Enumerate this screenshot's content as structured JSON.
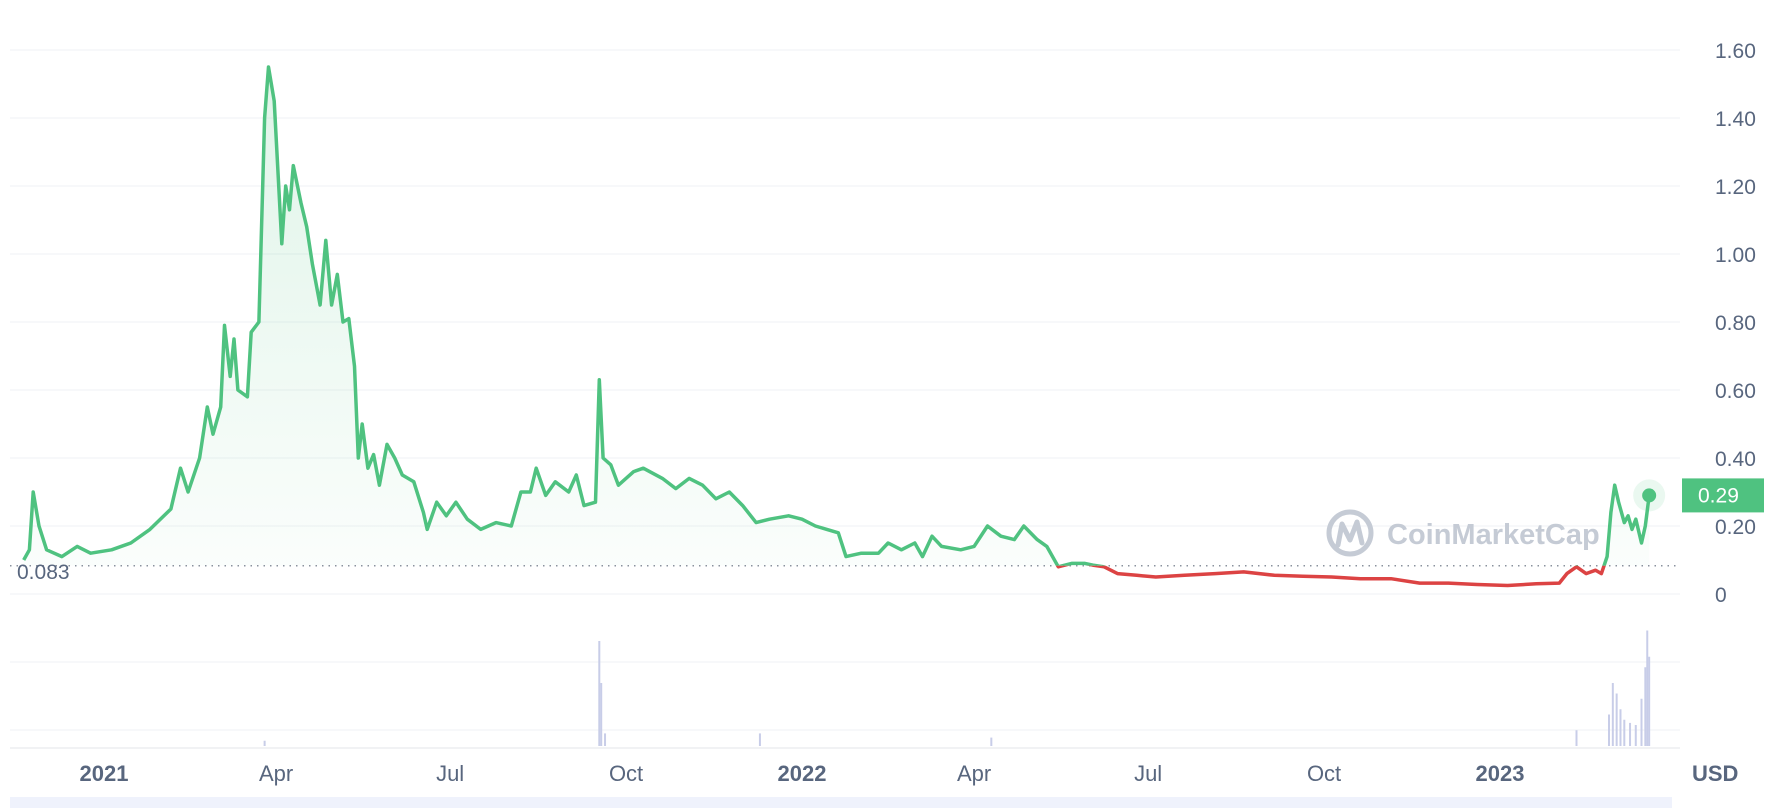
{
  "chart_data": {
    "type": "area",
    "y_ticks": [
      {
        "value": 0,
        "label": "0"
      },
      {
        "value": 0.2,
        "label": "0.20"
      },
      {
        "value": 0.4,
        "label": "0.40"
      },
      {
        "value": 0.6,
        "label": "0.60"
      },
      {
        "value": 0.8,
        "label": "0.80"
      },
      {
        "value": 1.0,
        "label": "1.00"
      },
      {
        "value": 1.2,
        "label": "1.20"
      },
      {
        "value": 1.4,
        "label": "1.40"
      },
      {
        "value": 1.6,
        "label": "1.60"
      }
    ],
    "ylim": [
      0,
      1.7
    ],
    "x_range": [
      "2020-11-20",
      "2023-03-20"
    ],
    "x_ticks": [
      {
        "date": "2021-01-01",
        "label": "2021",
        "bold": true
      },
      {
        "date": "2021-04-01",
        "label": "Apr",
        "bold": false
      },
      {
        "date": "2021-07-01",
        "label": "Jul",
        "bold": false
      },
      {
        "date": "2021-10-01",
        "label": "Oct",
        "bold": false
      },
      {
        "date": "2022-01-01",
        "label": "2022",
        "bold": true
      },
      {
        "date": "2022-04-01",
        "label": "Apr",
        "bold": false
      },
      {
        "date": "2022-07-01",
        "label": "Jul",
        "bold": false
      },
      {
        "date": "2022-10-01",
        "label": "Oct",
        "bold": false
      },
      {
        "date": "2023-01-01",
        "label": "2023",
        "bold": true
      }
    ],
    "currency": "USD",
    "reference_price": 0.083,
    "reference_label": "0.083",
    "current_price": 0.29,
    "current_label": "0.29",
    "colors": {
      "above": "#4fc280",
      "below": "#dc4343",
      "grid": "#eff2f5",
      "tag": "#4fc280"
    },
    "price": [
      [
        "2020-11-20",
        0.1
      ],
      [
        "2020-11-23",
        0.13
      ],
      [
        "2020-11-25",
        0.3
      ],
      [
        "2020-11-28",
        0.2
      ],
      [
        "2020-12-02",
        0.13
      ],
      [
        "2020-12-10",
        0.11
      ],
      [
        "2020-12-18",
        0.14
      ],
      [
        "2020-12-25",
        0.12
      ],
      [
        "2021-01-05",
        0.13
      ],
      [
        "2021-01-15",
        0.15
      ],
      [
        "2021-01-25",
        0.19
      ],
      [
        "2021-02-05",
        0.25
      ],
      [
        "2021-02-10",
        0.37
      ],
      [
        "2021-02-14",
        0.3
      ],
      [
        "2021-02-20",
        0.4
      ],
      [
        "2021-02-24",
        0.55
      ],
      [
        "2021-02-27",
        0.47
      ],
      [
        "2021-03-03",
        0.55
      ],
      [
        "2021-03-05",
        0.79
      ],
      [
        "2021-03-08",
        0.64
      ],
      [
        "2021-03-10",
        0.75
      ],
      [
        "2021-03-12",
        0.6
      ],
      [
        "2021-03-17",
        0.58
      ],
      [
        "2021-03-19",
        0.77
      ],
      [
        "2021-03-23",
        0.8
      ],
      [
        "2021-03-26",
        1.4
      ],
      [
        "2021-03-28",
        1.55
      ],
      [
        "2021-03-31",
        1.45
      ],
      [
        "2021-04-04",
        1.03
      ],
      [
        "2021-04-06",
        1.2
      ],
      [
        "2021-04-08",
        1.13
      ],
      [
        "2021-04-10",
        1.26
      ],
      [
        "2021-04-14",
        1.15
      ],
      [
        "2021-04-17",
        1.08
      ],
      [
        "2021-04-20",
        0.97
      ],
      [
        "2021-04-24",
        0.85
      ],
      [
        "2021-04-27",
        1.04
      ],
      [
        "2021-04-30",
        0.85
      ],
      [
        "2021-05-03",
        0.94
      ],
      [
        "2021-05-06",
        0.8
      ],
      [
        "2021-05-09",
        0.81
      ],
      [
        "2021-05-12",
        0.67
      ],
      [
        "2021-05-14",
        0.4
      ],
      [
        "2021-05-16",
        0.5
      ],
      [
        "2021-05-19",
        0.37
      ],
      [
        "2021-05-22",
        0.41
      ],
      [
        "2021-05-25",
        0.32
      ],
      [
        "2021-05-29",
        0.44
      ],
      [
        "2021-06-02",
        0.4
      ],
      [
        "2021-06-06",
        0.35
      ],
      [
        "2021-06-12",
        0.33
      ],
      [
        "2021-06-17",
        0.24
      ],
      [
        "2021-06-19",
        0.19
      ],
      [
        "2021-06-24",
        0.27
      ],
      [
        "2021-06-29",
        0.23
      ],
      [
        "2021-07-04",
        0.27
      ],
      [
        "2021-07-10",
        0.22
      ],
      [
        "2021-07-17",
        0.19
      ],
      [
        "2021-07-25",
        0.21
      ],
      [
        "2021-08-02",
        0.2
      ],
      [
        "2021-08-07",
        0.3
      ],
      [
        "2021-08-12",
        0.3
      ],
      [
        "2021-08-15",
        0.37
      ],
      [
        "2021-08-20",
        0.29
      ],
      [
        "2021-08-25",
        0.33
      ],
      [
        "2021-09-01",
        0.3
      ],
      [
        "2021-09-05",
        0.35
      ],
      [
        "2021-09-09",
        0.26
      ],
      [
        "2021-09-15",
        0.27
      ],
      [
        "2021-09-17",
        0.63
      ],
      [
        "2021-09-19",
        0.4
      ],
      [
        "2021-09-23",
        0.38
      ],
      [
        "2021-09-27",
        0.32
      ],
      [
        "2021-10-05",
        0.36
      ],
      [
        "2021-10-10",
        0.37
      ],
      [
        "2021-10-20",
        0.34
      ],
      [
        "2021-10-27",
        0.31
      ],
      [
        "2021-11-03",
        0.34
      ],
      [
        "2021-11-10",
        0.32
      ],
      [
        "2021-11-17",
        0.28
      ],
      [
        "2021-11-24",
        0.3
      ],
      [
        "2021-12-01",
        0.26
      ],
      [
        "2021-12-08",
        0.21
      ],
      [
        "2021-12-15",
        0.22
      ],
      [
        "2021-12-25",
        0.23
      ],
      [
        "2022-01-01",
        0.22
      ],
      [
        "2022-01-08",
        0.2
      ],
      [
        "2022-01-14",
        0.19
      ],
      [
        "2022-01-20",
        0.18
      ],
      [
        "2022-01-24",
        0.11
      ],
      [
        "2022-02-01",
        0.12
      ],
      [
        "2022-02-10",
        0.12
      ],
      [
        "2022-02-15",
        0.15
      ],
      [
        "2022-02-22",
        0.13
      ],
      [
        "2022-03-01",
        0.15
      ],
      [
        "2022-03-05",
        0.11
      ],
      [
        "2022-03-10",
        0.17
      ],
      [
        "2022-03-15",
        0.14
      ],
      [
        "2022-03-25",
        0.13
      ],
      [
        "2022-04-01",
        0.14
      ],
      [
        "2022-04-08",
        0.2
      ],
      [
        "2022-04-15",
        0.17
      ],
      [
        "2022-04-22",
        0.16
      ],
      [
        "2022-04-27",
        0.2
      ],
      [
        "2022-05-04",
        0.16
      ],
      [
        "2022-05-09",
        0.14
      ],
      [
        "2022-05-15",
        0.08
      ],
      [
        "2022-05-22",
        0.09
      ],
      [
        "2022-05-29",
        0.09
      ],
      [
        "2022-06-02",
        0.085
      ],
      [
        "2022-06-08",
        0.08
      ],
      [
        "2022-06-15",
        0.06
      ],
      [
        "2022-06-25",
        0.055
      ],
      [
        "2022-07-05",
        0.05
      ],
      [
        "2022-07-20",
        0.055
      ],
      [
        "2022-08-05",
        0.06
      ],
      [
        "2022-08-20",
        0.065
      ],
      [
        "2022-09-05",
        0.055
      ],
      [
        "2022-09-20",
        0.052
      ],
      [
        "2022-10-05",
        0.05
      ],
      [
        "2022-10-20",
        0.045
      ],
      [
        "2022-11-05",
        0.045
      ],
      [
        "2022-11-20",
        0.032
      ],
      [
        "2022-12-05",
        0.032
      ],
      [
        "2022-12-20",
        0.028
      ],
      [
        "2023-01-05",
        0.025
      ],
      [
        "2023-01-20",
        0.03
      ],
      [
        "2023-02-01",
        0.032
      ],
      [
        "2023-02-05",
        0.06
      ],
      [
        "2023-02-10",
        0.08
      ],
      [
        "2023-02-15",
        0.06
      ],
      [
        "2023-02-20",
        0.07
      ],
      [
        "2023-02-23",
        0.06
      ],
      [
        "2023-02-26",
        0.11
      ],
      [
        "2023-02-28",
        0.24
      ],
      [
        "2023-03-02",
        0.32
      ],
      [
        "2023-03-04",
        0.27
      ],
      [
        "2023-03-07",
        0.21
      ],
      [
        "2023-03-09",
        0.23
      ],
      [
        "2023-03-11",
        0.19
      ],
      [
        "2023-03-13",
        0.22
      ],
      [
        "2023-03-16",
        0.15
      ],
      [
        "2023-03-18",
        0.2
      ],
      [
        "2023-03-20",
        0.29
      ]
    ],
    "volume_spikes": [
      {
        "date": "2021-03-26",
        "level": 0.05
      },
      {
        "date": "2021-09-17",
        "level": 1.0
      },
      {
        "date": "2021-09-18",
        "level": 0.6
      },
      {
        "date": "2021-09-20",
        "level": 0.12
      },
      {
        "date": "2021-12-10",
        "level": 0.12
      },
      {
        "date": "2022-04-10",
        "level": 0.08
      },
      {
        "date": "2023-02-10",
        "level": 0.15
      },
      {
        "date": "2023-02-27",
        "level": 0.3
      },
      {
        "date": "2023-03-01",
        "level": 0.6
      },
      {
        "date": "2023-03-03",
        "level": 0.5
      },
      {
        "date": "2023-03-05",
        "level": 0.35
      },
      {
        "date": "2023-03-07",
        "level": 0.25
      },
      {
        "date": "2023-03-10",
        "level": 0.22
      },
      {
        "date": "2023-03-13",
        "level": 0.2
      },
      {
        "date": "2023-03-16",
        "level": 0.45
      },
      {
        "date": "2023-03-18",
        "level": 0.75
      },
      {
        "date": "2023-03-19",
        "level": 1.1
      },
      {
        "date": "2023-03-20",
        "level": 0.85
      }
    ]
  },
  "watermark": {
    "text": "CoinMarketCap",
    "icon": "coinmarketcap-logo-icon"
  }
}
